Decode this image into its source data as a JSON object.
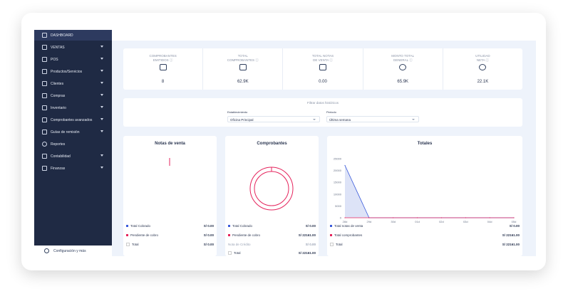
{
  "sidebar": {
    "items": [
      {
        "label": "DASHBOARD",
        "icon": "monitor-icon",
        "chevron": false
      },
      {
        "label": "VENTAS",
        "icon": "document-icon",
        "chevron": true
      },
      {
        "label": "POS",
        "icon": "cart-icon",
        "chevron": true
      },
      {
        "label": "Productos/Servicios",
        "icon": "grid-icon",
        "chevron": true
      },
      {
        "label": "Clientes",
        "icon": "users-icon",
        "chevron": true
      },
      {
        "label": "Compras",
        "icon": "bag-icon",
        "chevron": true
      },
      {
        "label": "Inventario",
        "icon": "box-icon",
        "chevron": true
      },
      {
        "label": "Comprobantes avanzados",
        "icon": "receipt-icon",
        "chevron": true
      },
      {
        "label": "Guías de remisión",
        "icon": "truck-icon",
        "chevron": true
      },
      {
        "label": "Reportes",
        "icon": "clock-icon",
        "chevron": false
      },
      {
        "label": "Contabilidad",
        "icon": "bar-chart-icon",
        "chevron": true
      },
      {
        "label": "Finanzas",
        "icon": "dollar-icon",
        "chevron": true
      }
    ],
    "config_label": "Configuración y más"
  },
  "metrics": [
    {
      "label": "COMPROBANTES\nEMITIDOS ⓘ",
      "value": "8",
      "icon": "folder-icon"
    },
    {
      "label": "TOTAL\nCOMPROBANTES ⓘ",
      "value": "62.9K",
      "icon": "copy-icon"
    },
    {
      "label": "TOTAL NOTAS\nDE VENTA ⓘ",
      "value": "0.00",
      "icon": "notes-icon"
    },
    {
      "label": "MONTO TOTAL\nGENERAL ⓘ",
      "value": "65.9K",
      "icon": "coin-icon"
    },
    {
      "label": "UTILIDAD\nNETA ⓘ",
      "value": "22.1K",
      "icon": "chart-circle-icon"
    }
  ],
  "filters": {
    "title": "Filtrar datos históricos",
    "establecimiento_label": "Establecimiento",
    "establecimiento_value": "Oficina Principal",
    "periodo_label": "Periodo",
    "periodo_value": "Última semana"
  },
  "cards": {
    "notas": {
      "title": "Notas de venta",
      "legend": [
        {
          "label": "Total Cobrado",
          "amount": "S/ 0.00",
          "color": "#3b5bdb"
        },
        {
          "label": "Pendiente de cobro",
          "amount": "S/ 0.00",
          "color": "#e5235c"
        },
        {
          "label": "Total",
          "amount": "S/ 0.00",
          "color": "#ffffff"
        }
      ]
    },
    "comprobantes": {
      "title": "Comprobantes",
      "legend": [
        {
          "label": "Total Cobrado",
          "amount": "S/ 0.00",
          "color": "#3b5bdb"
        },
        {
          "label": "Pendiente de cobro",
          "amount": "S/ 22161.00",
          "color": "#e5235c"
        },
        {
          "label": "Nota de Crédito",
          "amount": "S/ 0.00",
          "color": ""
        },
        {
          "label": "Total",
          "amount": "S/ 22161.00",
          "color": "#ffffff"
        }
      ]
    },
    "totales": {
      "title": "Totales",
      "legend": [
        {
          "label": "Total notas de venta",
          "amount": "S/ 0.00",
          "color": "#3b5bdb"
        },
        {
          "label": "Total comprobantes",
          "amount": "S/ 22161.00",
          "color": "#e5235c"
        },
        {
          "label": "Total",
          "amount": "S/ 22161.00",
          "color": "#ffffff"
        }
      ]
    }
  },
  "chart_data": {
    "type": "area",
    "title": "Totales",
    "categories": [
      "28d",
      "29d",
      "30d",
      "01d",
      "02d",
      "03d",
      "04d",
      "05d"
    ],
    "series": [
      {
        "name": "Total comprobantes",
        "values": [
          22161,
          0,
          0,
          0,
          0,
          0,
          0,
          0
        ]
      },
      {
        "name": "Total notas de venta",
        "values": [
          0,
          0,
          0,
          0,
          0,
          0,
          0,
          0
        ]
      }
    ],
    "yticks": [
      0,
      5000,
      10000,
      15000,
      20000,
      25000
    ],
    "ylim": [
      0,
      25000
    ],
    "colors": {
      "area_fill": "#dde3f7",
      "area_line": "#3b5bdb",
      "base_line": "#e5235c"
    }
  }
}
